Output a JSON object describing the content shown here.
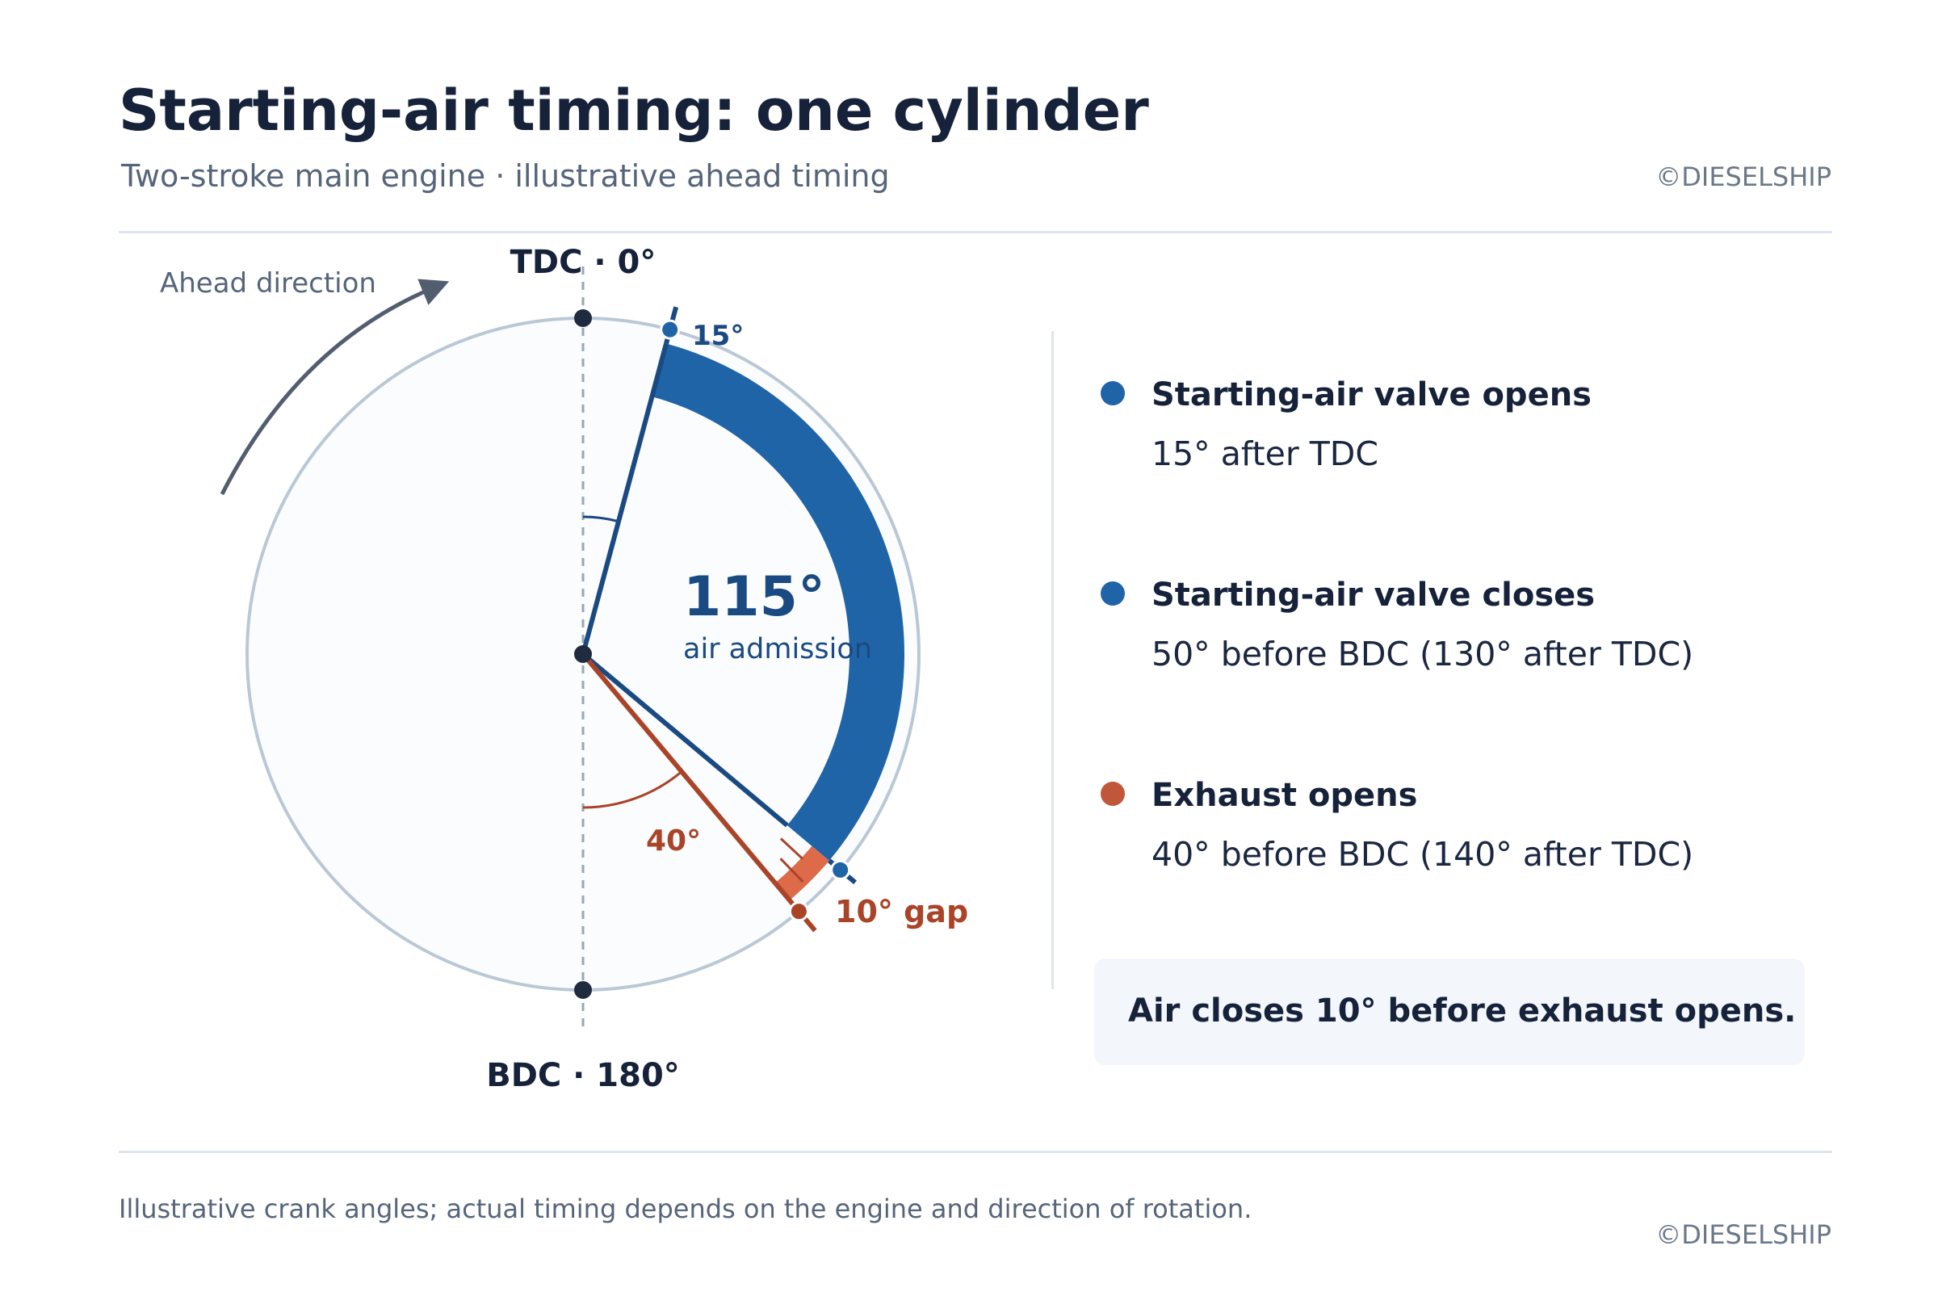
{
  "header": {
    "title": "Starting-air timing: one cylinder",
    "subtitle": "Two-stroke main engine · illustrative ahead timing",
    "copyright": "©DIESELSHIP"
  },
  "diagram": {
    "tdc_label": "TDC · 0°",
    "bdc_label": "BDC · 180°",
    "direction_label": "Ahead direction",
    "air_open_angle_label": "15°",
    "air_open_deg": 15,
    "air_close_deg": 130,
    "exhaust_open_deg": 140,
    "admission_value": "115°",
    "admission_label": "air admission",
    "exhaust_angle_label": "40°",
    "gap_label": "10° gap",
    "colors": {
      "air": "#2064a8",
      "air_dark": "#1a4a82",
      "exhaust": "#a94428",
      "exhaust_light": "#dd6a48",
      "circle": "#bac8d6",
      "point": "#1f2b3e"
    }
  },
  "events": [
    {
      "title": "Starting-air valve opens",
      "detail": "15° after TDC",
      "color": "#2064a8"
    },
    {
      "title": "Starting-air valve closes",
      "detail": "50° before BDC (130° after TDC)",
      "color": "#2064a8"
    },
    {
      "title": "Exhaust opens",
      "detail": "40° before BDC (140° after TDC)",
      "color": "#c0573b"
    }
  ],
  "callout": "Air closes 10° before exhaust opens.",
  "footnote": "Illustrative crank angles; actual timing depends on the engine and direction of rotation."
}
